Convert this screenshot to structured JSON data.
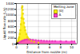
{
  "chart_data": {
    "type": "area",
    "xlabel": "Distance from nozzle (m)",
    "ylabel": "Liquid flow rate (L/s)",
    "legend_title": "Melting zone",
    "legend": "upper right",
    "grid": true,
    "xlim": [
      0,
      11
    ],
    "ylim": [
      0,
      1400
    ],
    "xticks": [
      0,
      2,
      4,
      6,
      8,
      10
    ],
    "yticks": [
      0,
      200,
      400,
      600,
      800,
      1000,
      1200,
      1400
    ],
    "series": [
      {
        "name": "[0]",
        "type": "area",
        "color": "#FFEE00",
        "x": [
          0.0,
          0.05,
          0.1,
          0.2,
          0.3,
          0.5,
          0.7,
          0.8,
          0.9,
          1.0,
          1.1,
          1.2,
          1.4,
          1.6,
          1.9,
          2.2,
          2.6,
          3.2,
          4.0,
          5.0,
          6.0,
          6.5
        ],
        "values": [
          0,
          20,
          50,
          100,
          170,
          280,
          500,
          720,
          950,
          1300,
          1340,
          1150,
          850,
          600,
          380,
          240,
          160,
          110,
          70,
          45,
          25,
          0
        ]
      },
      {
        "name": "A",
        "type": "area",
        "color": "#FF40CC",
        "x": [
          0.0,
          0.1,
          0.3,
          0.6,
          0.9,
          1.1,
          1.4,
          1.7,
          2.0,
          2.5,
          3.0,
          3.5,
          4.0,
          5.0,
          6.0,
          7.0,
          8.0,
          9.0,
          10.0,
          10.5,
          11.0
        ],
        "values": [
          0,
          20,
          45,
          75,
          100,
          120,
          145,
          158,
          165,
          158,
          148,
          138,
          128,
          112,
          105,
          103,
          100,
          97,
          95,
          94,
          0
        ]
      },
      {
        "type": "scatter",
        "color": "#FFEE00",
        "marker": "square",
        "x": [
          0.05,
          0.1,
          0.15,
          0.2,
          0.3,
          0.4,
          0.5,
          0.6,
          0.7,
          0.8,
          0.9,
          1.0,
          1.05,
          1.1,
          1.15,
          1.2,
          1.3,
          1.4,
          1.5,
          1.6,
          1.8,
          2.0,
          2.3,
          2.7,
          3.2,
          4.0
        ],
        "values": [
          8,
          20,
          35,
          55,
          100,
          160,
          230,
          350,
          480,
          680,
          900,
          1250,
          1310,
          1290,
          1180,
          1050,
          870,
          730,
          580,
          480,
          340,
          240,
          160,
          110,
          80,
          50
        ]
      },
      {
        "type": "scatter",
        "color": "#FF40CC",
        "marker": "square",
        "x": [
          0.3,
          0.7,
          1.0,
          1.3,
          1.6,
          2.0,
          2.5,
          3.0,
          3.5,
          4.0,
          4.5,
          5.0,
          5.5,
          6.0,
          6.5,
          7.0,
          8.0,
          9.0,
          10.0,
          10.5
        ],
        "values": [
          40,
          80,
          110,
          130,
          152,
          162,
          155,
          145,
          136,
          126,
          120,
          113,
          108,
          104,
          103,
          102,
          99,
          96,
          94,
          93
        ]
      },
      {
        "type": "scatter",
        "color": "#111111",
        "marker": "square",
        "x": [
          0.03,
          0.06,
          0.08,
          0.12,
          0.15,
          0.18
        ],
        "values": [
          3,
          5,
          8,
          12,
          16,
          20
        ]
      }
    ]
  }
}
